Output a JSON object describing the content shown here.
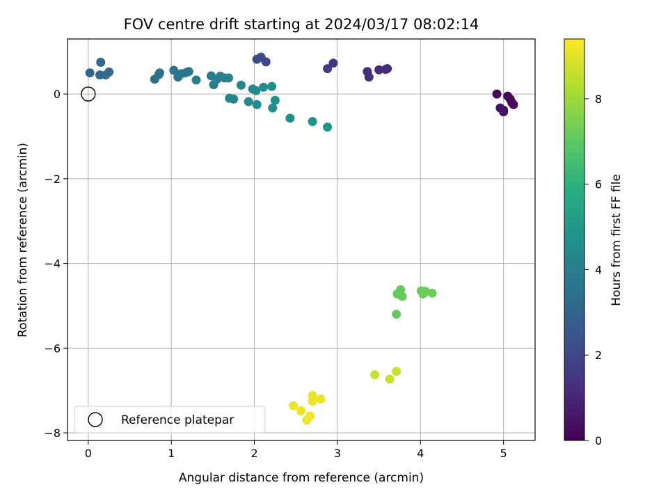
{
  "chart_data": {
    "type": "scatter",
    "title": "FOV centre drift starting at 2024/03/17 08:02:14",
    "xlabel": "Angular distance from reference (arcmin)",
    "ylabel": "Rotation from reference (arcmin)",
    "xlim": [
      -0.25,
      5.38
    ],
    "ylim": [
      -8.18,
      1.3
    ],
    "xticks": [
      0,
      1,
      2,
      3,
      4,
      5
    ],
    "yticks": [
      0,
      -2,
      -4,
      -6,
      -8
    ],
    "grid": true,
    "colormap": "viridis",
    "colorbar": {
      "label": "Hours from first FF file",
      "range": [
        0,
        9.4
      ],
      "ticks": [
        0,
        2,
        4,
        6,
        8
      ]
    },
    "legend": {
      "placement": "lower-left",
      "entries": [
        "Reference platepar"
      ]
    },
    "reference_point": {
      "x": 0,
      "y": 0
    },
    "points": [
      {
        "x": 4.92,
        "y": 0.0,
        "h": 0.05
      },
      {
        "x": 5.05,
        "y": -0.05,
        "h": 0.12
      },
      {
        "x": 5.08,
        "y": -0.12,
        "h": 0.18
      },
      {
        "x": 5.1,
        "y": -0.2,
        "h": 0.25
      },
      {
        "x": 5.12,
        "y": -0.25,
        "h": 0.3
      },
      {
        "x": 4.96,
        "y": -0.33,
        "h": 0.35
      },
      {
        "x": 5.0,
        "y": -0.42,
        "h": 0.4
      },
      {
        "x": 5.0,
        "y": -0.38,
        "h": 0.45
      },
      {
        "x": 3.6,
        "y": 0.6,
        "h": 1.05
      },
      {
        "x": 3.58,
        "y": 0.58,
        "h": 1.1
      },
      {
        "x": 3.5,
        "y": 0.57,
        "h": 1.15
      },
      {
        "x": 3.36,
        "y": 0.53,
        "h": 1.2
      },
      {
        "x": 3.38,
        "y": 0.4,
        "h": 1.25
      },
      {
        "x": 2.95,
        "y": 0.73,
        "h": 1.5
      },
      {
        "x": 2.88,
        "y": 0.6,
        "h": 1.55
      },
      {
        "x": 2.14,
        "y": 0.76,
        "h": 2.0
      },
      {
        "x": 2.08,
        "y": 0.87,
        "h": 2.05
      },
      {
        "x": 2.03,
        "y": 0.82,
        "h": 2.1
      },
      {
        "x": 0.02,
        "y": 0.5,
        "h": 3.1
      },
      {
        "x": 0.15,
        "y": 0.75,
        "h": 3.15
      },
      {
        "x": 0.14,
        "y": 0.45,
        "h": 3.2
      },
      {
        "x": 0.21,
        "y": 0.45,
        "h": 3.25
      },
      {
        "x": 0.25,
        "y": 0.52,
        "h": 3.3
      },
      {
        "x": 0.8,
        "y": 0.35,
        "h": 3.45
      },
      {
        "x": 0.85,
        "y": 0.46,
        "h": 3.5
      },
      {
        "x": 0.86,
        "y": 0.5,
        "h": 3.55
      },
      {
        "x": 1.03,
        "y": 0.56,
        "h": 3.6
      },
      {
        "x": 1.08,
        "y": 0.4,
        "h": 3.65
      },
      {
        "x": 1.12,
        "y": 0.48,
        "h": 3.7
      },
      {
        "x": 1.17,
        "y": 0.5,
        "h": 3.75
      },
      {
        "x": 1.21,
        "y": 0.53,
        "h": 3.8
      },
      {
        "x": 1.3,
        "y": 0.33,
        "h": 3.85
      },
      {
        "x": 1.48,
        "y": 0.43,
        "h": 3.9
      },
      {
        "x": 1.51,
        "y": 0.22,
        "h": 3.95
      },
      {
        "x": 1.55,
        "y": 0.35,
        "h": 4.0
      },
      {
        "x": 1.59,
        "y": 0.42,
        "h": 4.05
      },
      {
        "x": 1.64,
        "y": 0.38,
        "h": 4.1
      },
      {
        "x": 1.69,
        "y": 0.38,
        "h": 4.15
      },
      {
        "x": 1.7,
        "y": -0.1,
        "h": 4.2
      },
      {
        "x": 1.75,
        "y": -0.12,
        "h": 4.25
      },
      {
        "x": 1.84,
        "y": 0.21,
        "h": 4.3
      },
      {
        "x": 1.93,
        "y": -0.18,
        "h": 4.35
      },
      {
        "x": 1.98,
        "y": 0.12,
        "h": 4.4
      },
      {
        "x": 2.02,
        "y": 0.08,
        "h": 4.45
      },
      {
        "x": 2.03,
        "y": -0.25,
        "h": 4.5
      },
      {
        "x": 2.11,
        "y": 0.16,
        "h": 4.55
      },
      {
        "x": 2.21,
        "y": 0.18,
        "h": 4.6
      },
      {
        "x": 2.22,
        "y": -0.33,
        "h": 4.65
      },
      {
        "x": 2.25,
        "y": -0.15,
        "h": 4.7
      },
      {
        "x": 2.43,
        "y": -0.57,
        "h": 4.75
      },
      {
        "x": 2.7,
        "y": -0.65,
        "h": 4.8
      },
      {
        "x": 2.88,
        "y": -0.78,
        "h": 4.85
      },
      {
        "x": 3.76,
        "y": -4.62,
        "h": 7.1
      },
      {
        "x": 3.72,
        "y": -4.72,
        "h": 7.12
      },
      {
        "x": 3.78,
        "y": -4.78,
        "h": 7.14
      },
      {
        "x": 3.71,
        "y": -5.2,
        "h": 7.16
      },
      {
        "x": 4.01,
        "y": -4.65,
        "h": 7.18
      },
      {
        "x": 4.06,
        "y": -4.66,
        "h": 7.2
      },
      {
        "x": 4.03,
        "y": -4.72,
        "h": 7.22
      },
      {
        "x": 4.14,
        "y": -4.7,
        "h": 7.24
      },
      {
        "x": 3.45,
        "y": -6.63,
        "h": 8.6
      },
      {
        "x": 3.63,
        "y": -6.73,
        "h": 8.62
      },
      {
        "x": 3.71,
        "y": -6.55,
        "h": 8.64
      },
      {
        "x": 2.7,
        "y": -7.12,
        "h": 9.1
      },
      {
        "x": 2.8,
        "y": -7.2,
        "h": 9.12
      },
      {
        "x": 2.7,
        "y": -7.25,
        "h": 9.14
      },
      {
        "x": 2.47,
        "y": -7.36,
        "h": 9.16
      },
      {
        "x": 2.56,
        "y": -7.48,
        "h": 9.18
      },
      {
        "x": 2.67,
        "y": -7.6,
        "h": 9.2
      },
      {
        "x": 2.63,
        "y": -7.7,
        "h": 9.22
      }
    ]
  }
}
